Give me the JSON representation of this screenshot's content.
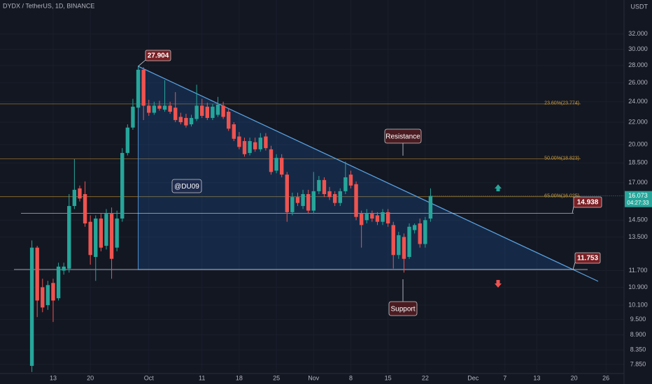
{
  "chart_data": {
    "type": "candlestick",
    "title": "DYDX / TetherUS, 1D, BINANCE",
    "currency": "USDT",
    "log_scale": true,
    "grid": true,
    "up_color": "#26a69a",
    "down_color": "#ef5350",
    "x": [
      9,
      10,
      11,
      12,
      13,
      14,
      15,
      16,
      17,
      18,
      19,
      20,
      21,
      22,
      23,
      24,
      25,
      26,
      27,
      28,
      29,
      30,
      31,
      32,
      33,
      34,
      35,
      36,
      37,
      38,
      39,
      40,
      41,
      42,
      43,
      44,
      45,
      46,
      47,
      48,
      49,
      50,
      51,
      52,
      53,
      54,
      55,
      56,
      57,
      58,
      59,
      60,
      61,
      62,
      63,
      64,
      65,
      66,
      67,
      68,
      69,
      70,
      71,
      72,
      73,
      74,
      75,
      76,
      77,
      78,
      79,
      80,
      81,
      82,
      83,
      84
    ],
    "open": [
      7.8,
      12.9,
      10.9,
      10.1,
      11.1,
      10.4,
      11.7,
      11.8,
      15.4,
      16.6,
      16.2,
      14.4,
      12.4,
      14.6,
      13.0,
      14.9,
      12.9,
      14.6,
      19.3,
      21.5,
      23.4,
      27.5,
      23.6,
      22.9,
      23.6,
      23.2,
      23.6,
      23.4,
      22.5,
      22.4,
      21.8,
      22.3,
      23.6,
      23.5,
      22.4,
      22.7,
      23.6,
      23.0,
      21.8,
      20.7,
      20.3,
      19.3,
      20.2,
      19.6,
      20.7,
      19.6,
      17.9,
      18.9,
      17.6,
      15.0,
      16.0,
      15.4,
      16.2,
      15.1,
      16.4,
      17.2,
      16.4,
      16.2,
      15.6,
      16.4,
      17.6,
      16.9,
      14.9,
      14.5,
      14.9,
      14.8,
      14.4,
      15.0,
      14.2,
      12.5,
      13.5,
      12.4,
      13.9,
      14.3,
      13.1,
      14.6
    ],
    "high": [
      13.3,
      13.0,
      11.3,
      11.2,
      11.3,
      12.1,
      12.1,
      16.2,
      18.8,
      16.8,
      17.1,
      14.8,
      14.8,
      14.9,
      15.2,
      15.3,
      15.1,
      19.7,
      21.8,
      24.3,
      27.904,
      27.8,
      24.2,
      24.0,
      24.1,
      26.3,
      24.0,
      25.0,
      22.9,
      22.8,
      22.7,
      25.8,
      24.3,
      23.9,
      23.8,
      24.5,
      24.0,
      23.3,
      22.0,
      21.1,
      20.6,
      20.6,
      20.6,
      21.0,
      21.0,
      19.9,
      19.2,
      19.2,
      17.8,
      16.3,
      16.3,
      16.5,
      16.5,
      17.8,
      17.5,
      17.4,
      16.7,
      16.4,
      16.6,
      18.6,
      17.9,
      17.1,
      15.1,
      15.2,
      15.1,
      15.0,
      15.2,
      15.2,
      14.4,
      13.8,
      13.7,
      14.3,
      14.3,
      14.6,
      14.7,
      16.6
    ],
    "low": [
      7.6,
      9.6,
      9.8,
      9.9,
      9.4,
      10.3,
      11.5,
      11.6,
      15.2,
      15.7,
      14.1,
      12.0,
      11.2,
      12.7,
      12.8,
      11.3,
      12.7,
      14.4,
      19.1,
      21.3,
      23.2,
      22.2,
      22.6,
      22.7,
      23.1,
      23.0,
      22.8,
      22.0,
      21.8,
      21.5,
      21.6,
      22.1,
      22.4,
      22.2,
      22.2,
      22.5,
      22.3,
      21.2,
      20.3,
      19.6,
      19.0,
      19.1,
      19.4,
      19.4,
      19.5,
      17.6,
      17.7,
      17.4,
      14.4,
      14.8,
      15.4,
      15.2,
      14.9,
      14.9,
      16.2,
      16.0,
      15.8,
      15.4,
      15.4,
      16.2,
      16.6,
      14.5,
      12.9,
      14.3,
      14.4,
      14.2,
      14.2,
      14.1,
      11.8,
      12.3,
      11.6,
      12.3,
      13.7,
      12.9,
      12.9,
      14.4
    ],
    "close": [
      12.9,
      10.3,
      10.0,
      11.0,
      10.3,
      11.9,
      11.9,
      15.4,
      16.5,
      15.9,
      14.3,
      12.5,
      14.6,
      12.9,
      14.9,
      12.3,
      14.6,
      19.3,
      21.5,
      23.5,
      27.5,
      23.6,
      22.9,
      23.6,
      23.3,
      23.6,
      23.0,
      22.2,
      22.0,
      21.7,
      22.4,
      23.6,
      22.6,
      22.4,
      23.5,
      23.7,
      22.5,
      21.4,
      20.5,
      19.8,
      19.2,
      20.3,
      19.6,
      20.6,
      19.7,
      17.8,
      18.9,
      17.6,
      15.0,
      16.0,
      15.6,
      16.2,
      15.1,
      16.4,
      17.2,
      16.2,
      16.0,
      15.6,
      16.4,
      17.4,
      16.8,
      14.7,
      14.2,
      14.9,
      14.6,
      14.4,
      15.0,
      14.3,
      12.5,
      13.6,
      12.3,
      14.1,
      14.2,
      13.1,
      14.5,
      16.073
    ],
    "countdown": "04:27:33",
    "xlim": [
      3,
      120.4
    ],
    "xticks": [
      {
        "value": 13,
        "label": "13"
      },
      {
        "value": 20,
        "label": "20"
      },
      {
        "value": 31,
        "label": "Oct"
      },
      {
        "value": 41,
        "label": "11"
      },
      {
        "value": 48,
        "label": "18"
      },
      {
        "value": 55,
        "label": "25"
      },
      {
        "value": 62,
        "label": "Nov"
      },
      {
        "value": 69,
        "label": "8"
      },
      {
        "value": 76,
        "label": "15"
      },
      {
        "value": 83,
        "label": "22"
      },
      {
        "value": 92,
        "label": "Dec"
      },
      {
        "value": 98,
        "label": "7"
      },
      {
        "value": 104,
        "label": "13"
      },
      {
        "value": 111,
        "label": "20"
      },
      {
        "value": 117,
        "label": "26"
      }
    ],
    "ylim": [
      7.55,
      37.0
    ],
    "yticks": [
      {
        "value": 32,
        "label": "32.000"
      },
      {
        "value": 30,
        "label": "30.000"
      },
      {
        "value": 28,
        "label": "28.000"
      },
      {
        "value": 26,
        "label": "26.000"
      },
      {
        "value": 24,
        "label": "24.000"
      },
      {
        "value": 22,
        "label": "22.000"
      },
      {
        "value": 20,
        "label": "20.000"
      },
      {
        "value": 18.5,
        "label": "18.500"
      },
      {
        "value": 17,
        "label": "17.000"
      },
      {
        "value": 14.5,
        "label": "14.500"
      },
      {
        "value": 13.5,
        "label": "13.500"
      },
      {
        "value": 11.7,
        "label": "11.700"
      },
      {
        "value": 10.9,
        "label": "10.900"
      },
      {
        "value": 10.1,
        "label": "10.100"
      },
      {
        "value": 9.5,
        "label": "9.500"
      },
      {
        "value": 8.9,
        "label": "8.900"
      },
      {
        "value": 8.35,
        "label": "8.350"
      },
      {
        "value": 7.85,
        "label": "7.850"
      }
    ],
    "fib_levels": [
      {
        "value": 23.774,
        "label": "23.60%(23.774)"
      },
      {
        "value": 18.823,
        "label": "50.00%(18.823)"
      },
      {
        "value": 16.025,
        "label": "65.00%(16.025)"
      }
    ],
    "levels": [
      14.938,
      11.753
    ],
    "annotations": {
      "resistance": "Resistance",
      "support": "Support",
      "author": "@DU09"
    }
  }
}
